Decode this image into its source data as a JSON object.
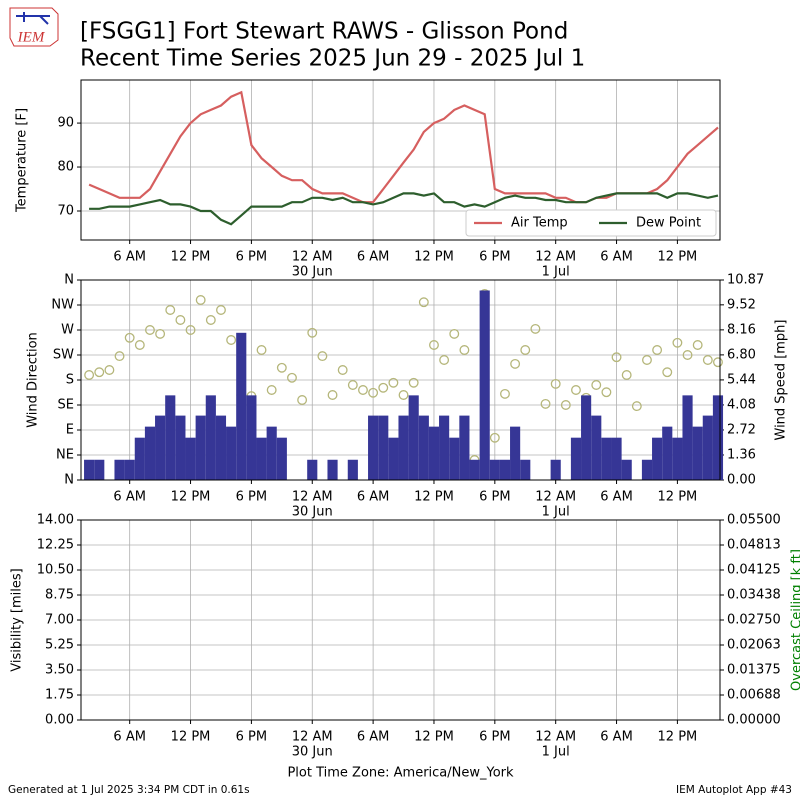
{
  "header": {
    "logo": "IEM",
    "title": "[FSGG1] Fort Stewart RAWS - Glisson Pond",
    "subtitle": "Recent Time Series 2025 Jun 29 - 2025 Jul 1"
  },
  "footer": {
    "generated": "Generated at 1 Jul 2025 3:34 PM CDT in 0.61s",
    "app": "IEM Autoplot App #43"
  },
  "chart_data": [
    {
      "type": "line",
      "ylabel": "Temperature [F]",
      "grid": true,
      "legend": "lower right",
      "xlim": [
        1.2,
        64.2
      ],
      "xticks": [
        {
          "value": 6,
          "label": "6 AM"
        },
        {
          "value": 12,
          "label": "12 PM"
        },
        {
          "value": 18,
          "label": "6 PM"
        },
        {
          "value": 24,
          "label": "12 AM"
        },
        {
          "value": 30,
          "label": "6 AM"
        },
        {
          "value": 36,
          "label": "12 PM"
        },
        {
          "value": 42,
          "label": "6 PM"
        },
        {
          "value": 48,
          "label": "12 AM"
        },
        {
          "value": 54,
          "label": "6 AM"
        },
        {
          "value": 60,
          "label": "12 PM"
        }
      ],
      "xdates": [
        {
          "value": 24,
          "label": "30 Jun"
        },
        {
          "value": 48,
          "label": "1 Jul"
        }
      ],
      "ylim": [
        63.4,
        99.8
      ],
      "yticks": [
        70,
        80,
        90
      ],
      "x": [
        2,
        3,
        4,
        5,
        6,
        7,
        8,
        9,
        10,
        11,
        12,
        13,
        14,
        15,
        16,
        17,
        18,
        19,
        20,
        21,
        22,
        23,
        24,
        25,
        26,
        27,
        28,
        29,
        30,
        31,
        32,
        33,
        34,
        35,
        36,
        37,
        38,
        39,
        40,
        41,
        42,
        43,
        44,
        45,
        46,
        47,
        48,
        49,
        50,
        51,
        52,
        53,
        54,
        55,
        56,
        57,
        58,
        59,
        60,
        61,
        62,
        63,
        64
      ],
      "series": [
        {
          "name": "Air Temp",
          "color": "#d65f5f",
          "values": [
            76,
            75,
            74,
            73,
            73,
            73,
            75,
            79,
            83,
            87,
            90,
            92,
            93,
            94,
            96,
            97,
            85,
            82,
            80,
            78,
            77,
            77,
            75,
            74,
            74,
            74,
            73,
            72,
            72,
            75,
            78,
            81,
            84,
            88,
            90,
            91,
            93,
            94,
            93,
            92,
            75,
            74,
            74,
            74,
            74,
            74,
            73,
            73,
            72,
            72,
            73,
            73,
            74,
            74,
            74,
            74,
            75,
            77,
            80,
            83,
            85,
            87,
            89
          ]
        },
        {
          "name": "Dew Point",
          "color": "#2d5e2d",
          "values": [
            70.5,
            70.5,
            71,
            71,
            71,
            71.5,
            72,
            72.5,
            71.5,
            71.5,
            71,
            70,
            70,
            68,
            67,
            69,
            71,
            71,
            71,
            71,
            72,
            72,
            73,
            73,
            72.5,
            73,
            72,
            72,
            71.5,
            72,
            73,
            74,
            74,
            73.5,
            74,
            72,
            72,
            71,
            71.5,
            71,
            72,
            73,
            73.5,
            73,
            73,
            72.5,
            72.5,
            72,
            72,
            72,
            73,
            73.5,
            74,
            74,
            74,
            74,
            74,
            73,
            74,
            74,
            73.5,
            73,
            73.5
          ]
        }
      ]
    },
    {
      "type": "combo",
      "ylabel": "Wind Direction",
      "y2label": "Wind Speed [mph]",
      "grid": true,
      "xlim": [
        1.2,
        64.2
      ],
      "xticks": [
        {
          "value": 6,
          "label": "6 AM"
        },
        {
          "value": 12,
          "label": "12 PM"
        },
        {
          "value": 18,
          "label": "6 PM"
        },
        {
          "value": 24,
          "label": "12 AM"
        },
        {
          "value": 30,
          "label": "6 AM"
        },
        {
          "value": 36,
          "label": "12 PM"
        },
        {
          "value": 42,
          "label": "6 PM"
        },
        {
          "value": 48,
          "label": "12 AM"
        },
        {
          "value": 54,
          "label": "6 AM"
        },
        {
          "value": 60,
          "label": "12 PM"
        }
      ],
      "xdates": [
        {
          "value": 24,
          "label": "30 Jun"
        },
        {
          "value": 48,
          "label": "1 Jul"
        }
      ],
      "ylim": [
        0,
        360
      ],
      "yticks": [
        {
          "value": 0,
          "label": "N"
        },
        {
          "value": 45,
          "label": "NE"
        },
        {
          "value": 90,
          "label": "E"
        },
        {
          "value": 135,
          "label": "SE"
        },
        {
          "value": 180,
          "label": "S"
        },
        {
          "value": 225,
          "label": "SW"
        },
        {
          "value": 270,
          "label": "W"
        },
        {
          "value": 315,
          "label": "NW"
        },
        {
          "value": 360,
          "label": "N"
        }
      ],
      "y2lim": [
        0,
        10.87
      ],
      "y2ticks": [
        {
          "value": 0,
          "label": "0.00"
        },
        1.36,
        2.72,
        4.08,
        5.44,
        {
          "value": 6.8,
          "label": "6.80"
        },
        8.16,
        9.52,
        10.87
      ],
      "x": [
        2,
        3,
        4,
        5,
        6,
        7,
        8,
        9,
        10,
        11,
        12,
        13,
        14,
        15,
        16,
        17,
        18,
        19,
        20,
        21,
        22,
        23,
        24,
        25,
        26,
        27,
        28,
        29,
        30,
        31,
        32,
        33,
        34,
        35,
        36,
        37,
        38,
        39,
        40,
        41,
        42,
        43,
        44,
        45,
        46,
        47,
        48,
        49,
        50,
        51,
        52,
        53,
        54,
        55,
        56,
        57,
        58,
        59,
        60,
        61,
        62,
        63,
        64
      ],
      "series": [
        {
          "kind": "scatter",
          "color": "#b5b67a",
          "values": [
            189,
            194,
            198,
            223,
            256,
            243,
            270,
            263,
            306,
            288,
            270,
            324,
            288,
            306,
            252,
            153,
            151,
            234,
            162,
            202,
            184,
            144,
            265,
            223,
            153,
            198,
            171,
            162,
            157,
            166,
            175,
            153,
            175,
            320,
            243,
            216,
            263,
            234,
            36,
            335,
            76,
            155,
            209,
            234,
            272,
            137,
            173,
            135,
            162,
            148,
            171,
            158,
            221,
            189,
            133,
            216,
            234,
            194,
            247,
            225,
            243,
            216,
            212
          ]
        },
        {
          "kind": "bar",
          "axis": "y2",
          "color": "#363696",
          "values": [
            1.1,
            1.1,
            0,
            1.1,
            1.1,
            2.3,
            2.9,
            3.5,
            4.6,
            3.5,
            2.3,
            3.5,
            4.6,
            3.5,
            2.9,
            8.0,
            4.6,
            2.3,
            2.9,
            2.3,
            0,
            0,
            1.1,
            0,
            1.1,
            0,
            1.1,
            0,
            3.5,
            3.5,
            2.3,
            3.5,
            4.6,
            3.5,
            2.9,
            3.5,
            2.3,
            3.5,
            1.1,
            10.3,
            1.1,
            1.1,
            2.9,
            1.1,
            0,
            0,
            1.1,
            0,
            2.3,
            4.6,
            3.5,
            2.3,
            2.3,
            1.1,
            0,
            1.1,
            2.3,
            2.9,
            2.3,
            4.6,
            2.9,
            3.5,
            4.6
          ]
        }
      ]
    },
    {
      "type": "line",
      "ylabel": "Visibility [miles]",
      "y2label": "Overcast Ceiling [k ft]",
      "y2label_color": "green",
      "grid": true,
      "xlabel": "Plot Time Zone: America/New_York",
      "xlim": [
        1.2,
        64.2
      ],
      "xticks": [
        {
          "value": 6,
          "label": "6 AM"
        },
        {
          "value": 12,
          "label": "12 PM"
        },
        {
          "value": 18,
          "label": "6 PM"
        },
        {
          "value": 24,
          "label": "12 AM"
        },
        {
          "value": 30,
          "label": "6 AM"
        },
        {
          "value": 36,
          "label": "12 PM"
        },
        {
          "value": 42,
          "label": "6 PM"
        },
        {
          "value": 48,
          "label": "12 AM"
        },
        {
          "value": 54,
          "label": "6 AM"
        },
        {
          "value": 60,
          "label": "12 PM"
        }
      ],
      "xdates": [
        {
          "value": 24,
          "label": "30 Jun"
        },
        {
          "value": 48,
          "label": "1 Jul"
        }
      ],
      "ylim": [
        0,
        14
      ],
      "yticks": [
        {
          "value": 0,
          "label": "0.00"
        },
        1.75,
        {
          "value": 3.5,
          "label": "3.50"
        },
        5.25,
        {
          "value": 7,
          "label": "7.00"
        },
        8.75,
        {
          "value": 10.5,
          "label": "10.50"
        },
        12.25,
        {
          "value": 14,
          "label": "14.00"
        }
      ],
      "y2lim": [
        0,
        0.055
      ],
      "y2ticks": [
        {
          "value": 0,
          "label": "0.00000"
        },
        {
          "value": 0.006875,
          "label": "0.00688"
        },
        {
          "value": 0.01375,
          "label": "0.01375"
        },
        {
          "value": 0.020625,
          "label": "0.02063"
        },
        {
          "value": 0.0275,
          "label": "0.02750"
        },
        {
          "value": 0.034375,
          "label": "0.03438"
        },
        {
          "value": 0.04125,
          "label": "0.04125"
        },
        {
          "value": 0.048125,
          "label": "0.04813"
        },
        {
          "value": 0.055,
          "label": "0.05500"
        }
      ],
      "series": []
    }
  ]
}
